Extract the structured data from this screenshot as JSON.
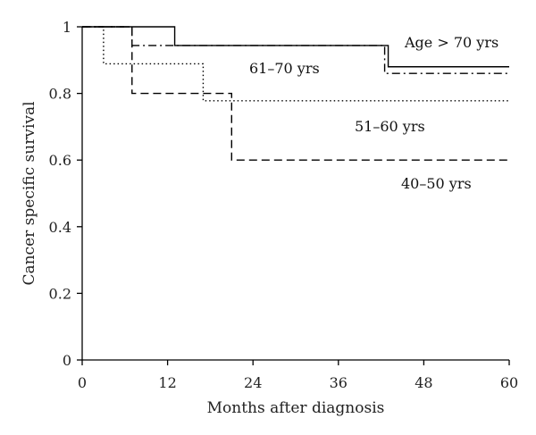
{
  "chart_data": {
    "type": "line",
    "title": "",
    "xlabel": "Months after diagnosis",
    "ylabel": "Cancer specific survival",
    "xlim": [
      0,
      60
    ],
    "ylim": [
      0,
      1
    ],
    "x_ticks": [
      0,
      12,
      24,
      36,
      48,
      60
    ],
    "y_ticks": [
      0,
      0.2,
      0.4,
      0.6,
      0.8,
      1
    ],
    "x_tick_labels": [
      "0",
      "12",
      "24",
      "36",
      "48",
      "60"
    ],
    "y_tick_labels": [
      "0",
      "0.2",
      "0.4",
      "0.6",
      "0.8",
      "1"
    ],
    "grid": false,
    "step": true,
    "series": [
      {
        "name": "Age > 70 yrs",
        "line_style": "solid",
        "x": [
          0,
          13,
          43,
          60
        ],
        "y": [
          1.0,
          0.944,
          0.88,
          0.88
        ]
      },
      {
        "name": "61–70 yrs",
        "line_style": "dashdot",
        "x": [
          0,
          7,
          42.5,
          60
        ],
        "y": [
          1.0,
          0.944,
          0.86,
          0.86
        ]
      },
      {
        "name": "51–60 yrs",
        "line_style": "dotted",
        "x": [
          0,
          3,
          17,
          60
        ],
        "y": [
          1.0,
          0.889,
          0.778,
          0.778
        ]
      },
      {
        "name": "40–50 yrs",
        "line_style": "dashed",
        "x": [
          0,
          7,
          21,
          60
        ],
        "y": [
          1.0,
          0.8,
          0.6,
          0.6
        ]
      }
    ]
  },
  "ui": {
    "stroke_color": "#000000"
  }
}
